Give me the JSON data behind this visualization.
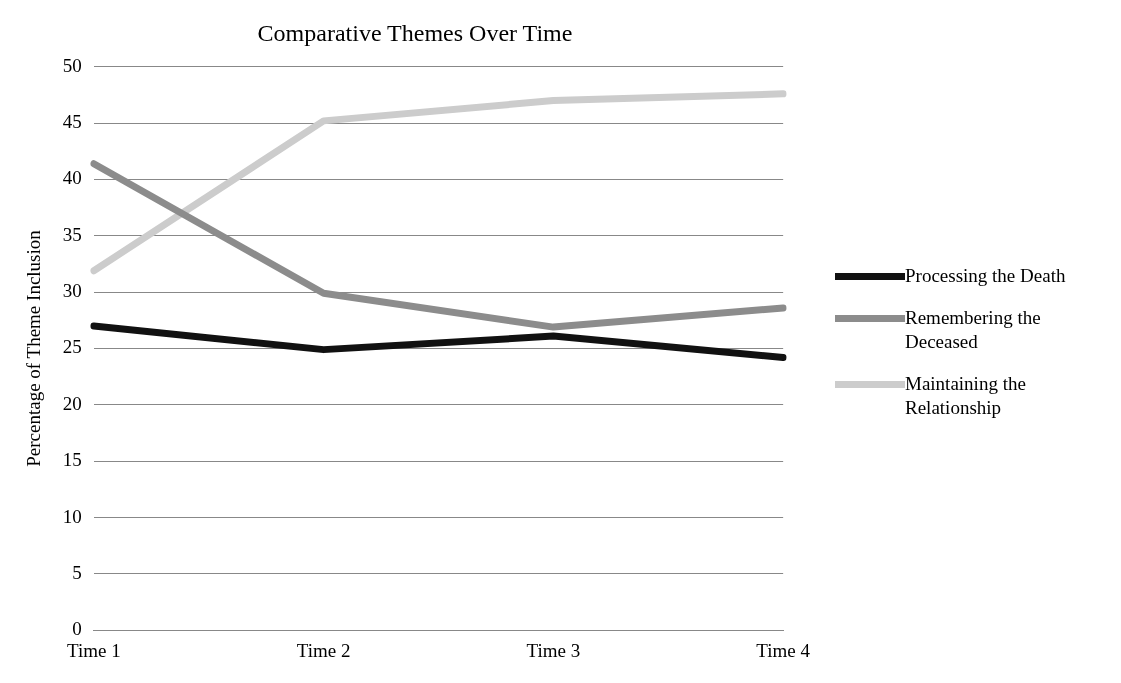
{
  "chart_data": {
    "type": "line",
    "title": "Comparative Themes Over Time",
    "ylabel": "Percentage of Theme Inclusion",
    "categories": [
      "Time 1",
      "Time 2",
      "Time 3",
      "Time 4"
    ],
    "series": [
      {
        "name": "Processing the Death",
        "color": "#111111",
        "values": [
          27.0,
          24.9,
          26.1,
          24.2
        ]
      },
      {
        "name": "Remembering the Deceased",
        "color": "#8c8c8c",
        "values": [
          41.4,
          29.9,
          26.9,
          28.6
        ]
      },
      {
        "name": "Maintaining the Relationship",
        "color": "#cccccc",
        "values": [
          31.9,
          45.2,
          47.0,
          47.6
        ]
      }
    ],
    "ylim": [
      0,
      50
    ],
    "yticks": [
      0,
      5,
      10,
      15,
      20,
      25,
      30,
      35,
      40,
      45,
      50
    ],
    "grid": "y",
    "legend": "right",
    "marker": "none",
    "line_style": "solid"
  }
}
